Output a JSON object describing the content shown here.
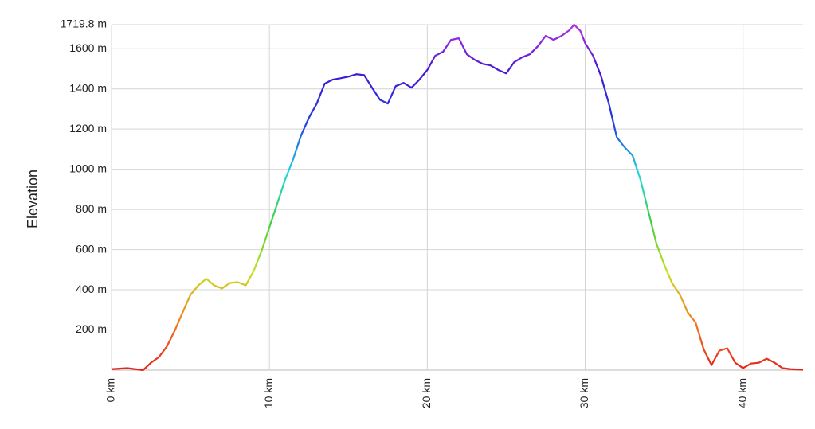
{
  "chart_data": {
    "type": "line",
    "y_label": "Elevation",
    "grid": true,
    "color_scale": [
      "#e8201c",
      "#f08020",
      "#c8e020",
      "#40d040",
      "#20d8e0",
      "#2040e0",
      "#4018d8",
      "#b030e0"
    ],
    "x": [
      0,
      1,
      2,
      2.5,
      3,
      3.5,
      4,
      4.5,
      5,
      5.5,
      6,
      6.5,
      7,
      7.5,
      8,
      8.5,
      9,
      9.5,
      10,
      10.5,
      11,
      11.5,
      12,
      12.5,
      13,
      13.5,
      14,
      14.5,
      15,
      15.5,
      16,
      16.5,
      17,
      17.5,
      18,
      18.5,
      19,
      19.5,
      20,
      20.5,
      21,
      21.5,
      22,
      22.5,
      23,
      23.5,
      24,
      24.5,
      25,
      25.5,
      26,
      26.5,
      27,
      27.5,
      28,
      28.5,
      29,
      29.3,
      29.7,
      30,
      30.5,
      31,
      31.5,
      32,
      32.5,
      33,
      33.5,
      34,
      34.5,
      35,
      35.5,
      36,
      36.5,
      37,
      37.5,
      38,
      38.5,
      39,
      39.5,
      40,
      40.5,
      41,
      41.5,
      42,
      42.5,
      43,
      43.8
    ],
    "series": [
      {
        "name": "Elevation",
        "values": [
          5,
          10,
          0,
          37,
          65,
          117,
          196,
          287,
          375,
          422,
          455,
          422,
          407,
          434,
          438,
          422,
          493,
          593,
          711,
          830,
          949,
          1049,
          1168,
          1256,
          1327,
          1426,
          1446,
          1453,
          1461,
          1473,
          1469,
          1406,
          1346,
          1327,
          1414,
          1430,
          1406,
          1446,
          1494,
          1565,
          1585,
          1644,
          1652,
          1573,
          1545,
          1525,
          1517,
          1494,
          1477,
          1533,
          1557,
          1573,
          1612,
          1664,
          1644,
          1664,
          1692,
          1719.8,
          1688,
          1628,
          1565,
          1465,
          1327,
          1160,
          1109,
          1069,
          949,
          791,
          633,
          526,
          434,
          375,
          287,
          236,
          105,
          25,
          97,
          109,
          37,
          10,
          33,
          37,
          57,
          37,
          10,
          5,
          2
        ]
      }
    ],
    "xlim": [
      0,
      43.8
    ],
    "xticks": [
      {
        "value": 0,
        "label": "0 km"
      },
      {
        "value": 10,
        "label": "10 km"
      },
      {
        "value": 20,
        "label": "20 km"
      },
      {
        "value": 30,
        "label": "30 km"
      },
      {
        "value": 40,
        "label": "40 km"
      }
    ],
    "ylim": [
      0,
      1719.8
    ],
    "yticks": [
      {
        "value": 200,
        "label": "200 m"
      },
      {
        "value": 400,
        "label": "400 m"
      },
      {
        "value": 600,
        "label": "600 m"
      },
      {
        "value": 800,
        "label": "800 m"
      },
      {
        "value": 1000,
        "label": "1000 m"
      },
      {
        "value": 1200,
        "label": "1200 m"
      },
      {
        "value": 1400,
        "label": "1400 m"
      },
      {
        "value": 1600,
        "label": "1600 m"
      },
      {
        "value": 1719.8,
        "label": "1719.8 m"
      }
    ]
  }
}
